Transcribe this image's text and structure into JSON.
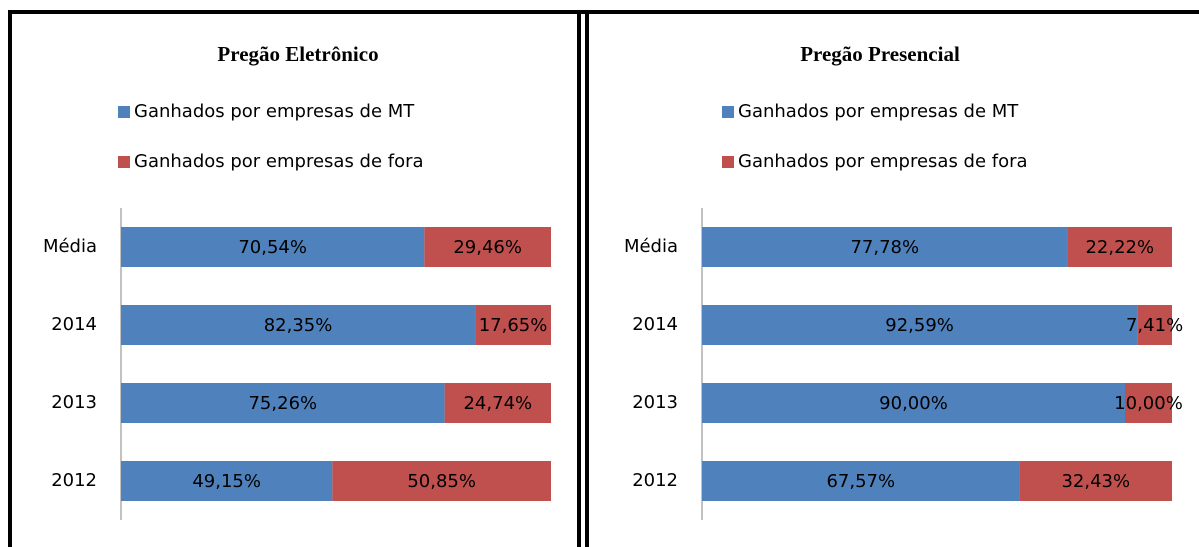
{
  "chart_data": [
    {
      "type": "bar",
      "orientation": "horizontal",
      "stacked": true,
      "title": "Pregão Eletrônico",
      "categories": [
        "Média",
        "2014",
        "2013",
        "2012"
      ],
      "xlim": [
        0,
        100
      ],
      "series": [
        {
          "name": "Ganhados por empresas de MT",
          "color": "#4f81bd",
          "values": [
            70.54,
            82.35,
            75.26,
            49.15
          ],
          "value_labels": [
            "70,54%",
            "82,35%",
            "75,26%",
            "49,15%"
          ]
        },
        {
          "name": "Ganhados por empresas de fora",
          "color": "#c0504d",
          "values": [
            29.46,
            17.65,
            24.74,
            50.85
          ],
          "value_labels": [
            "29,46%",
            "17,65%",
            "24,74%",
            "50,85%"
          ]
        }
      ]
    },
    {
      "type": "bar",
      "orientation": "horizontal",
      "stacked": true,
      "title": "Pregão Presencial",
      "categories": [
        "Média",
        "2014",
        "2013",
        "2012"
      ],
      "xlim": [
        0,
        100
      ],
      "series": [
        {
          "name": "Ganhados por empresas de MT",
          "color": "#4f81bd",
          "values": [
            77.78,
            92.59,
            90.0,
            67.57
          ],
          "value_labels": [
            "77,78%",
            "92,59%",
            "90,00%",
            "67,57%"
          ]
        },
        {
          "name": "Ganhados por empresas de fora",
          "color": "#c0504d",
          "values": [
            22.22,
            7.41,
            10.0,
            32.43
          ],
          "value_labels": [
            "22,22%",
            "7,41%",
            "10,00%",
            "32,43%"
          ]
        }
      ]
    }
  ]
}
